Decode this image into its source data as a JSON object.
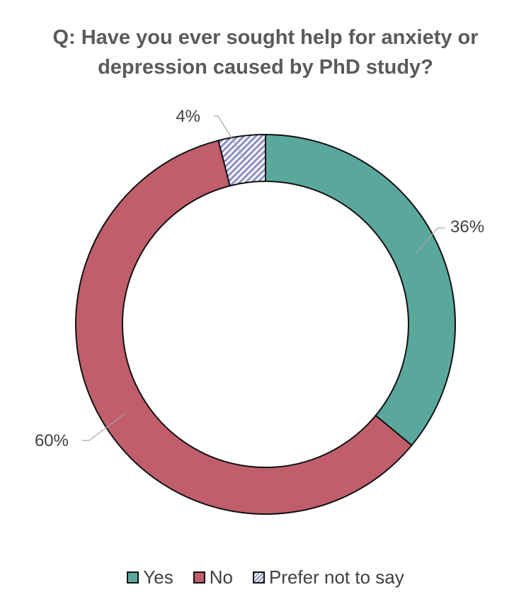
{
  "chart_data": {
    "type": "pie",
    "variant": "donut",
    "title_lines": [
      "Q: Have you ever sought help for anxiety or",
      "depression caused by PhD study?"
    ],
    "series": [
      {
        "name": "Yes",
        "value": 36,
        "label": "36%",
        "color": "#5aa89c",
        "pattern": "solid"
      },
      {
        "name": "No",
        "value": 60,
        "label": "60%",
        "color": "#c05e6c",
        "pattern": "solid"
      },
      {
        "name": "Prefer not to say",
        "value": 4,
        "label": "4%",
        "color": "#8a8fc6",
        "pattern": "diagonal-hatch"
      }
    ],
    "start_angle": "top",
    "direction": "clockwise",
    "legend_position": "bottom"
  }
}
